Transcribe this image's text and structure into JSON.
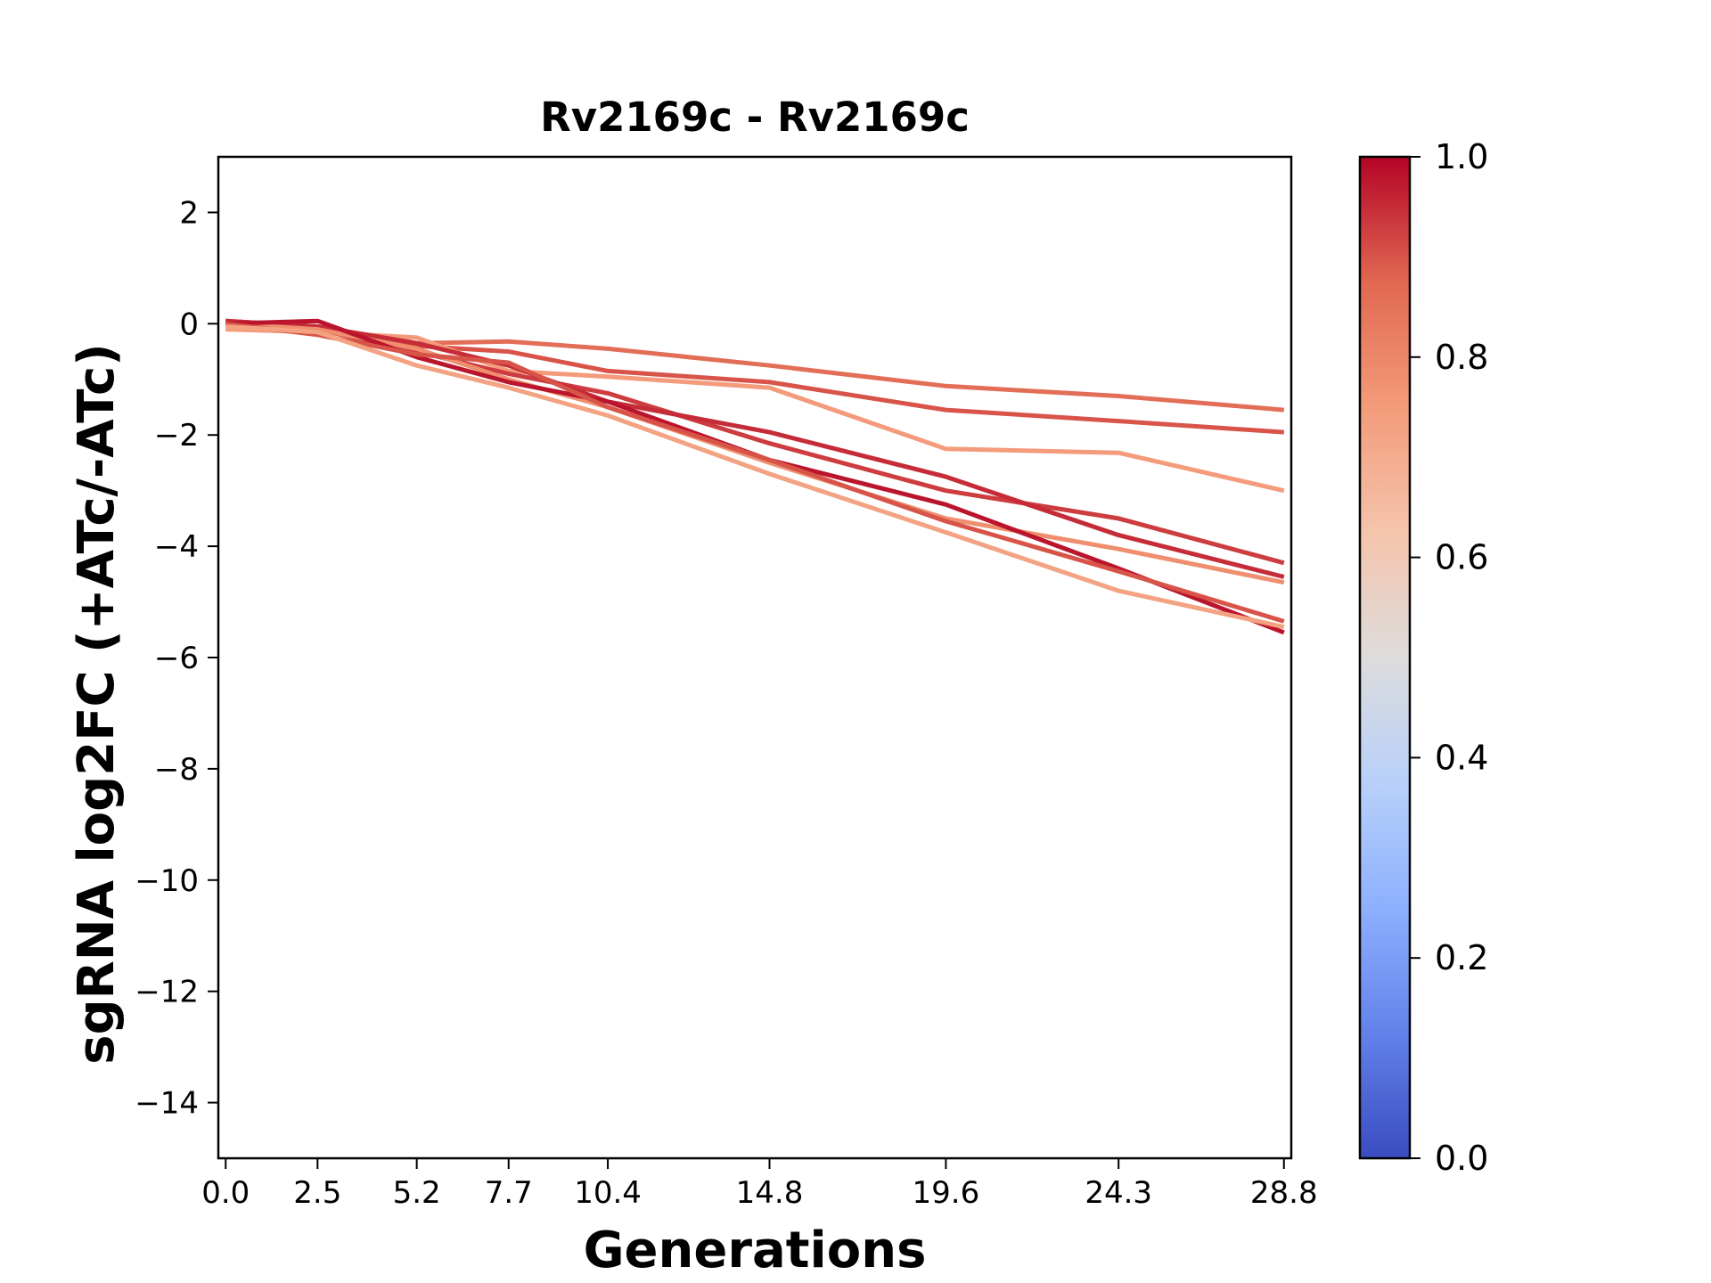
{
  "chart_data": {
    "type": "line",
    "title": "Rv2169c - Rv2169c",
    "xlabel": "Generations",
    "ylabel": "sgRNA log2FC (+ATc/-ATc)",
    "x": [
      0.0,
      2.5,
      5.2,
      7.7,
      10.4,
      14.8,
      19.6,
      24.3,
      28.8
    ],
    "x_tick_labels": [
      "0.0",
      "2.5",
      "5.2",
      "7.7",
      "10.4",
      "14.8",
      "19.6",
      "24.3",
      "28.8"
    ],
    "xlim": [
      -0.2,
      29.0
    ],
    "ylim": [
      -15,
      3
    ],
    "y_ticks": [
      2,
      0,
      -2,
      -4,
      -6,
      -8,
      -10,
      -12,
      -14
    ],
    "y_tick_labels": [
      "2",
      "0",
      "−2",
      "−4",
      "−6",
      "−8",
      "−10",
      "−12",
      "−14"
    ],
    "grid": false,
    "colormap": "coolwarm",
    "colorbar": {
      "range": [
        0.0,
        1.0
      ],
      "ticks": [
        0.0,
        0.2,
        0.4,
        0.6,
        0.8,
        1.0
      ],
      "tick_labels": [
        "0.0",
        "0.2",
        "0.4",
        "0.6",
        "0.8",
        "1.0"
      ],
      "stops": [
        "#3b4cc0",
        "#6282ea",
        "#8db0fe",
        "#b8d0f9",
        "#dddcdc",
        "#f5c4ac",
        "#f39b7a",
        "#e16852",
        "#b40426"
      ]
    },
    "series": [
      {
        "values": [
          0.05,
          -0.05,
          -0.35,
          -0.32,
          -0.45,
          -0.75,
          -1.12,
          -1.3,
          -1.55
        ],
        "colorval": 0.86
      },
      {
        "values": [
          0.0,
          -0.05,
          -0.4,
          -0.5,
          -0.85,
          -1.05,
          -1.55,
          -1.75,
          -1.95
        ],
        "colorval": 0.9
      },
      {
        "values": [
          -0.1,
          -0.15,
          -0.25,
          -0.85,
          -0.95,
          -1.15,
          -2.25,
          -2.32,
          -3.0
        ],
        "colorval": 0.75
      },
      {
        "values": [
          0.02,
          -0.1,
          -0.5,
          -0.9,
          -1.25,
          -2.15,
          -3.0,
          -3.5,
          -4.3
        ],
        "colorval": 0.93
      },
      {
        "values": [
          0.05,
          -0.05,
          -0.35,
          -0.75,
          -1.4,
          -1.95,
          -2.75,
          -3.8,
          -4.55
        ],
        "colorval": 0.95
      },
      {
        "values": [
          0.0,
          -0.1,
          -0.45,
          -1.0,
          -1.5,
          -2.5,
          -3.5,
          -4.05,
          -4.65
        ],
        "colorval": 0.78
      },
      {
        "values": [
          0.0,
          0.05,
          -0.6,
          -1.05,
          -1.4,
          -2.45,
          -3.25,
          -4.4,
          -5.55
        ],
        "colorval": 0.98
      },
      {
        "values": [
          0.0,
          -0.2,
          -0.55,
          -0.7,
          -1.5,
          -2.45,
          -3.55,
          -4.45,
          -5.35
        ],
        "colorval": 0.9
      },
      {
        "values": [
          -0.05,
          -0.15,
          -0.75,
          -1.15,
          -1.65,
          -2.7,
          -3.75,
          -4.8,
          -5.45
        ],
        "colorval": 0.73
      }
    ]
  }
}
